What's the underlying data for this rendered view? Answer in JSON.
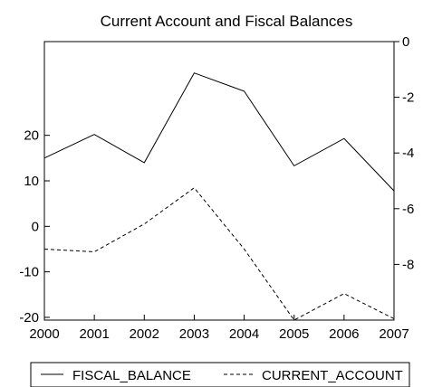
{
  "chart_data": {
    "type": "line",
    "title": "Current Account and Fiscal Balances",
    "xlabel": "",
    "x": [
      "2000",
      "2001",
      "2002",
      "2003",
      "2004",
      "2005",
      "2006",
      "2007"
    ],
    "left_axis": {
      "range": [
        -20.6,
        40.6
      ],
      "ticks": [
        "-20",
        "-10",
        "0",
        "10",
        "20"
      ],
      "tick_values": [
        -20,
        -10,
        0,
        10,
        20
      ]
    },
    "right_axis": {
      "range": [
        -10.0,
        0.0
      ],
      "ticks": [
        "-8",
        "-6",
        "-4",
        "-2",
        "0"
      ],
      "tick_values": [
        -8,
        -6,
        -4,
        -2,
        0
      ]
    },
    "series": [
      {
        "name": "FISCAL_BALANCE",
        "axis": "left",
        "line_style": "solid",
        "values": [
          15.0,
          20.2,
          14.0,
          33.7,
          29.7,
          13.3,
          19.3,
          7.8
        ]
      },
      {
        "name": "CURRENT_ACCOUNT",
        "axis": "right",
        "line_style": "dashed",
        "values": [
          -7.45,
          -7.55,
          -6.55,
          -5.25,
          -7.45,
          -10.0,
          -9.05,
          -9.95
        ]
      }
    ],
    "grid": false,
    "legend": "bottom"
  }
}
